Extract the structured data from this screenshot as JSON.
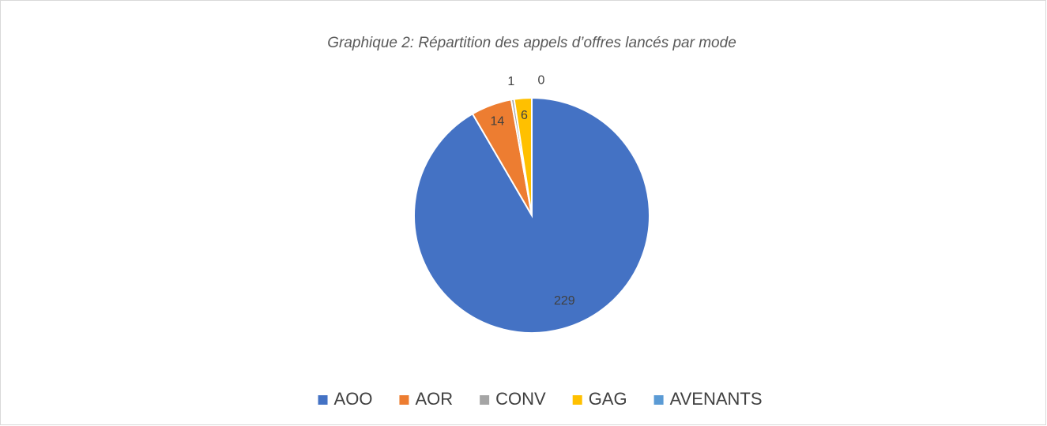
{
  "chart_data": {
    "type": "pie",
    "title": "Graphique 2: Répartition des appels d’offres lancés par mode",
    "categories": [
      "AOO",
      "AOR",
      "CONV",
      "GAG",
      "AVENANTS"
    ],
    "values": [
      229,
      14,
      1,
      6,
      0
    ],
    "colors": [
      "#4472c4",
      "#ed7d31",
      "#a5a5a5",
      "#ffc000",
      "#5b9bd5"
    ],
    "legend": "bottom"
  }
}
